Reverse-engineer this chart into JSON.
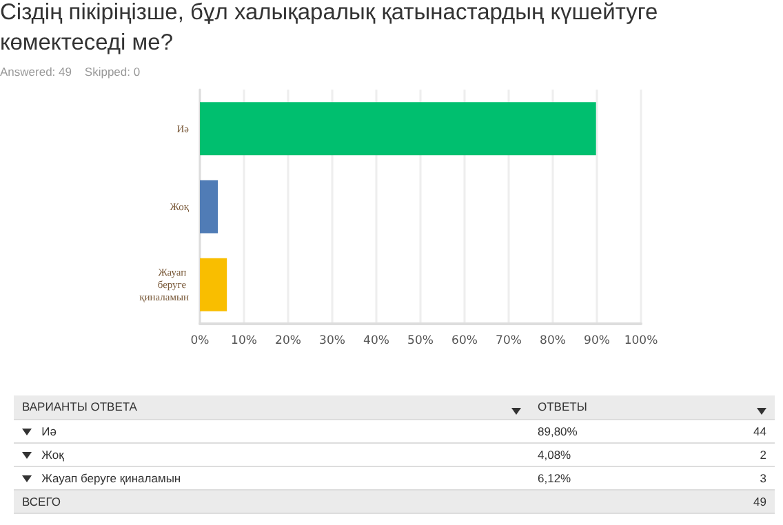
{
  "chart_data": {
    "type": "bar",
    "orientation": "horizontal",
    "title": "Сіздің пікіріңізше, бұл халықаралық қатынастардың күшейтуге көмектеседі ме?",
    "subtitle": "Answered: 49    Skipped: 0",
    "categories": [
      "Иә",
      "Жоқ",
      "Жауап беруге қиналамын"
    ],
    "values": [
      89.8,
      4.08,
      6.12
    ],
    "colors": [
      "#00bf6f",
      "#507cb6",
      "#f9be00"
    ],
    "xlim": [
      0,
      100
    ],
    "xticks": [
      {
        "value": 0,
        "label": "0%"
      },
      {
        "value": 10,
        "label": "10%"
      },
      {
        "value": 20,
        "label": "20%"
      },
      {
        "value": 30,
        "label": "30%"
      },
      {
        "value": 40,
        "label": "40%"
      },
      {
        "value": 50,
        "label": "50%"
      },
      {
        "value": 60,
        "label": "60%"
      },
      {
        "value": 70,
        "label": "70%"
      },
      {
        "value": 80,
        "label": "80%"
      },
      {
        "value": 90,
        "label": "90%"
      },
      {
        "value": 100,
        "label": "100%"
      }
    ],
    "grid": "x",
    "annotations": [
      "ВАРИАНТЫ ОТВЕТА",
      "ОТВЕТЫ",
      "89,80%",
      "4,08%",
      "6,12%",
      "44",
      "2",
      "3",
      "ВСЕГО",
      "49"
    ]
  }
}
